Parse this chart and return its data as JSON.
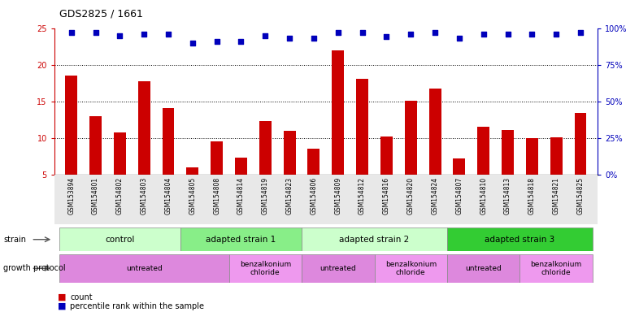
{
  "title": "GDS2825 / 1661",
  "samples": [
    "GSM153894",
    "GSM154801",
    "GSM154802",
    "GSM154803",
    "GSM154804",
    "GSM154805",
    "GSM154808",
    "GSM154814",
    "GSM154819",
    "GSM154823",
    "GSM154806",
    "GSM154809",
    "GSM154812",
    "GSM154816",
    "GSM154820",
    "GSM154824",
    "GSM154807",
    "GSM154810",
    "GSM154813",
    "GSM154818",
    "GSM154821",
    "GSM154825"
  ],
  "counts": [
    18.5,
    13.0,
    10.8,
    17.7,
    14.1,
    6.0,
    9.5,
    7.3,
    12.3,
    11.0,
    8.5,
    22.0,
    18.1,
    10.2,
    15.1,
    16.7,
    7.2,
    11.5,
    11.1,
    10.0,
    10.1,
    13.4
  ],
  "percentile": [
    97,
    97,
    95,
    96,
    96,
    90,
    91,
    91,
    95,
    93,
    93,
    97,
    97,
    94,
    96,
    97,
    93,
    96,
    96,
    96,
    96,
    97
  ],
  "bar_color": "#cc0000",
  "dot_color": "#0000bb",
  "ylim_left": [
    5,
    25
  ],
  "ylim_right": [
    0,
    100
  ],
  "yticks_left": [
    5,
    10,
    15,
    20,
    25
  ],
  "yticks_right": [
    0,
    25,
    50,
    75,
    100
  ],
  "ytick_labels_right": [
    "0%",
    "25%",
    "50%",
    "75%",
    "100%"
  ],
  "strain_groups": [
    {
      "label": "control",
      "start": 0,
      "end": 4,
      "color": "#ccffcc"
    },
    {
      "label": "adapted strain 1",
      "start": 5,
      "end": 9,
      "color": "#88ee88"
    },
    {
      "label": "adapted strain 2",
      "start": 10,
      "end": 15,
      "color": "#ccffcc"
    },
    {
      "label": "adapted strain 3",
      "start": 16,
      "end": 21,
      "color": "#33cc33"
    }
  ],
  "protocol_groups": [
    {
      "label": "untreated",
      "start": 0,
      "end": 6,
      "color": "#dd88dd"
    },
    {
      "label": "benzalkonium\nchloride",
      "start": 7,
      "end": 9,
      "color": "#ee99ee"
    },
    {
      "label": "untreated",
      "start": 10,
      "end": 12,
      "color": "#dd88dd"
    },
    {
      "label": "benzalkonium\nchloride",
      "start": 13,
      "end": 15,
      "color": "#ee99ee"
    },
    {
      "label": "untreated",
      "start": 16,
      "end": 18,
      "color": "#dd88dd"
    },
    {
      "label": "benzalkonium\nchloride",
      "start": 19,
      "end": 21,
      "color": "#ee99ee"
    }
  ],
  "legend_count_label": "count",
  "legend_pct_label": "percentile rank within the sample",
  "title_fontsize": 9,
  "axis_tick_color_left": "#cc0000",
  "axis_tick_color_right": "#0000bb"
}
